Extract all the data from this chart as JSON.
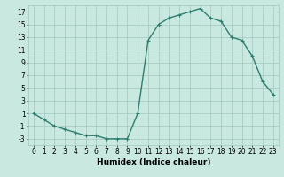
{
  "x": [
    0,
    1,
    2,
    3,
    4,
    5,
    6,
    7,
    8,
    9,
    10,
    11,
    12,
    13,
    14,
    15,
    16,
    17,
    18,
    19,
    20,
    21,
    22,
    23
  ],
  "y": [
    1,
    0,
    -1,
    -1.5,
    -2,
    -2.5,
    -2.5,
    -3,
    -3,
    -3,
    1,
    12.5,
    15,
    16,
    16.5,
    17,
    17.5,
    16,
    15.5,
    13,
    12.5,
    10,
    6,
    4
  ],
  "line_color": "#2e7d6e",
  "marker": "+",
  "marker_color": "#2e7d6e",
  "bg_color": "#c8e8e0",
  "grid_color": "#a0c8c0",
  "xlabel": "Humidex (Indice chaleur)",
  "xlim": [
    -0.5,
    23.5
  ],
  "ylim": [
    -4,
    18
  ],
  "yticks": [
    -3,
    -1,
    1,
    3,
    5,
    7,
    9,
    11,
    13,
    15,
    17
  ],
  "xticks": [
    0,
    1,
    2,
    3,
    4,
    5,
    6,
    7,
    8,
    9,
    10,
    11,
    12,
    13,
    14,
    15,
    16,
    17,
    18,
    19,
    20,
    21,
    22,
    23
  ],
  "tick_label_fontsize": 5.5,
  "xlabel_fontsize": 6.5,
  "line_width": 1.0,
  "marker_size": 3
}
